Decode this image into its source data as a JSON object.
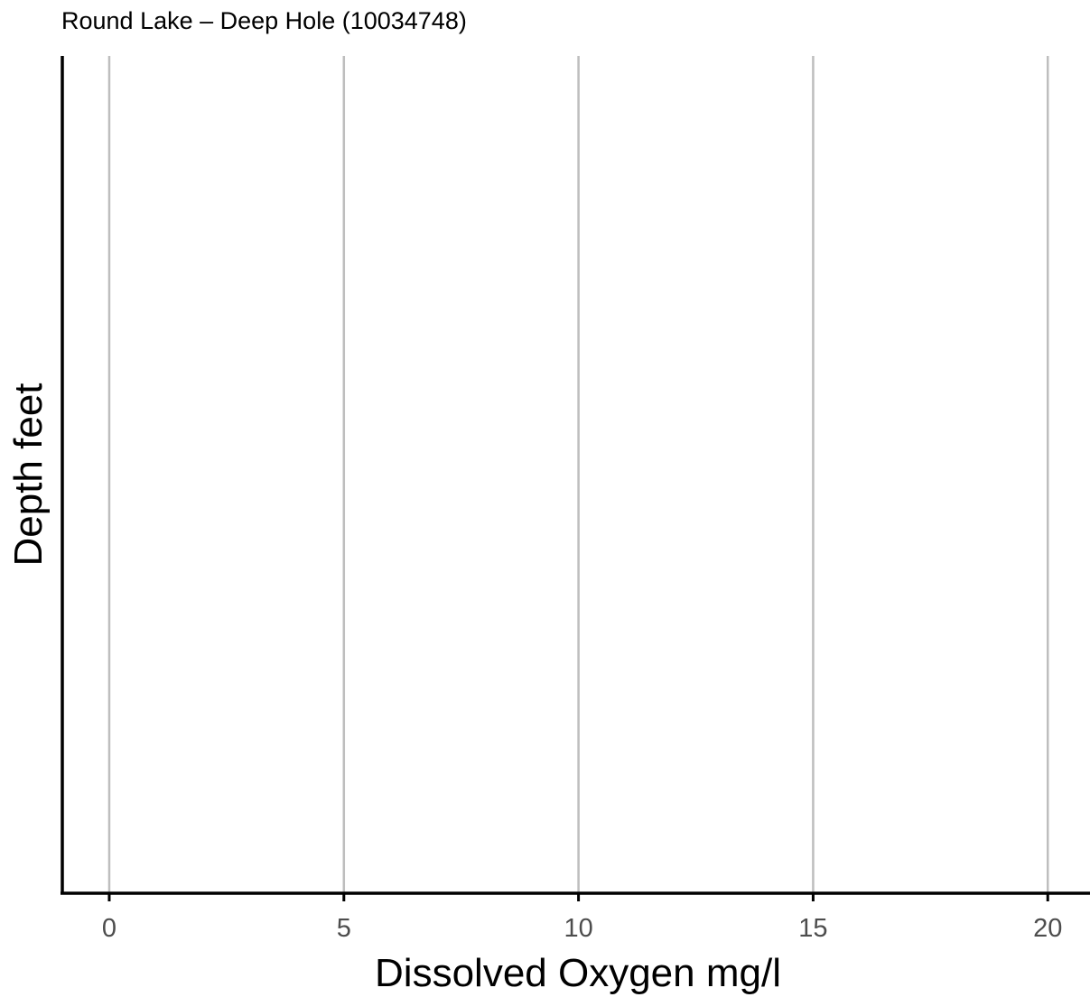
{
  "chart_data": {
    "type": "line",
    "title": "Round Lake – Deep Hole (10034748)",
    "xlabel": "Dissolved Oxygen mg/l",
    "ylabel": "Depth feet",
    "xlim": [
      -1,
      20.9
    ],
    "x_ticks": [
      0,
      5,
      10,
      15,
      20
    ],
    "x_tick_labels": [
      "0",
      "5",
      "10",
      "15",
      "20"
    ],
    "y_ticks": [],
    "series": [],
    "grid": {
      "x_major": true,
      "y_major": false
    },
    "legend": "none"
  }
}
